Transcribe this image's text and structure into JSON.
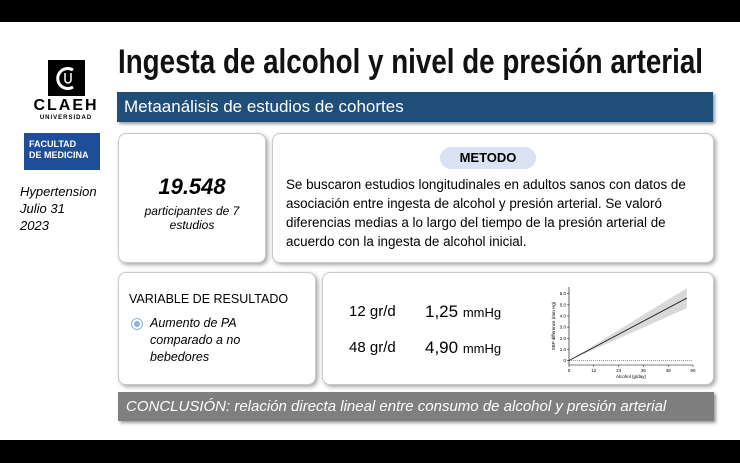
{
  "header": {
    "title": "Ingesta de alcohol y nivel de presión arterial",
    "subtitle": "Metaanálisis de estudios de cohortes"
  },
  "logo": {
    "name": "CLAEH",
    "subname": "UNIVERSIDAD",
    "faculty": [
      "FACULTAD",
      "DE MEDICINA"
    ]
  },
  "source": [
    "Hypertension",
    "Julio 31",
    "2023"
  ],
  "participants": {
    "count": "19.548",
    "label": "participantes de 7 estudios"
  },
  "method": {
    "heading": "METODO",
    "text": "Se buscaron estudios longitudinales en adultos sanos con datos de asociación entre ingesta de alcohol y presión arterial. Se valoró diferencias medias a lo largo del tiempo de la presión arterial de acuerdo con la ingesta de alcohol inicial."
  },
  "outcome": {
    "heading": "VARIABLE DE RESULTADO",
    "item": "Aumento de PA comparado a no bebedores"
  },
  "results": [
    {
      "dose": "12 gr/d",
      "value": "1,25",
      "unit": "mmHg"
    },
    {
      "dose": "48 gr/d",
      "value": "4,90",
      "unit": "mmHg"
    }
  ],
  "conclusion": "CONCLUSIÓN: relación directa lineal entre consumo de alcohol y presión arterial",
  "chart_data": {
    "type": "line",
    "x_label": "Alcohol (g/day)",
    "y_label": "SBP difference (mm Hg)",
    "x": [
      0,
      57
    ],
    "series": [
      {
        "color": "#000000",
        "values": [
          0,
          5.6
        ]
      }
    ],
    "band_lower": [
      0,
      4.7
    ],
    "band_upper": [
      0,
      6.5
    ],
    "band_color": "#d9d9d9",
    "xlim": [
      0,
      60
    ],
    "ylim": [
      -0.4,
      6.6
    ],
    "xticks": [
      0,
      12,
      24,
      36,
      48,
      60
    ],
    "yticks": [
      0,
      {
        "value": 1,
        "label": "1.0"
      },
      {
        "value": 2,
        "label": "2.0"
      },
      {
        "value": 3,
        "label": "3.0"
      },
      {
        "value": 4,
        "label": "4.0"
      },
      {
        "value": 5,
        "label": "5.0"
      },
      {
        "value": 6,
        "label": "6.0"
      }
    ],
    "zero_line": true
  }
}
